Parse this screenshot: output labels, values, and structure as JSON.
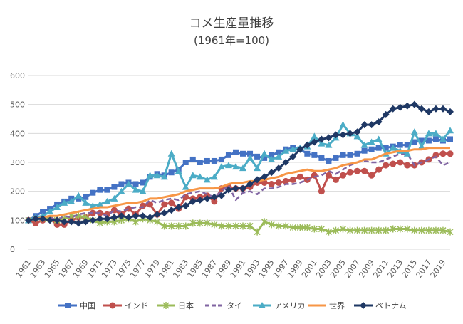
{
  "chart_data": {
    "type": "line",
    "title": "コメ生産量推移",
    "subtitle": "(1961年=100)",
    "xlabel": "",
    "ylabel": "",
    "ylim": [
      0,
      600
    ],
    "yticks": [
      0,
      100,
      200,
      300,
      400,
      500,
      600
    ],
    "xrange": [
      1961,
      2020
    ],
    "xticks": [
      1961,
      1963,
      1965,
      1967,
      1969,
      1971,
      1973,
      1975,
      1977,
      1979,
      1981,
      1983,
      1985,
      1987,
      1989,
      1991,
      1993,
      1995,
      1997,
      1999,
      2001,
      2003,
      2005,
      2007,
      2009,
      2011,
      2013,
      2015,
      2017,
      2019
    ],
    "grid": true,
    "legend_position": "bottom",
    "x": [
      1961,
      1962,
      1963,
      1964,
      1965,
      1966,
      1967,
      1968,
      1969,
      1970,
      1971,
      1972,
      1973,
      1974,
      1975,
      1976,
      1977,
      1978,
      1979,
      1980,
      1981,
      1982,
      1983,
      1984,
      1985,
      1986,
      1987,
      1988,
      1989,
      1990,
      1991,
      1992,
      1993,
      1994,
      1995,
      1996,
      1997,
      1998,
      1999,
      2000,
      2001,
      2002,
      2003,
      2004,
      2005,
      2006,
      2007,
      2008,
      2009,
      2010,
      2011,
      2012,
      2013,
      2014,
      2015,
      2016,
      2017,
      2018,
      2019,
      2020
    ],
    "series": [
      {
        "name": "中国",
        "color": "#4472C4",
        "style": "solid",
        "marker": "square",
        "values": [
          100,
          115,
          130,
          140,
          155,
          165,
          175,
          175,
          180,
          195,
          205,
          205,
          215,
          225,
          230,
          225,
          230,
          250,
          260,
          255,
          265,
          275,
          300,
          310,
          300,
          305,
          305,
          310,
          325,
          335,
          330,
          330,
          320,
          315,
          325,
          335,
          345,
          350,
          345,
          330,
          325,
          315,
          305,
          315,
          325,
          325,
          330,
          340,
          345,
          350,
          350,
          355,
          360,
          360,
          370,
          375,
          375,
          380,
          375,
          380
        ]
      },
      {
        "name": "インド",
        "color": "#C0504D",
        "style": "solid",
        "marker": "circle",
        "values": [
          100,
          90,
          100,
          105,
          85,
          85,
          100,
          110,
          110,
          125,
          125,
          120,
          135,
          120,
          140,
          120,
          150,
          155,
          120,
          155,
          160,
          140,
          180,
          175,
          180,
          185,
          165,
          210,
          215,
          210,
          210,
          215,
          230,
          230,
          225,
          230,
          235,
          240,
          250,
          240,
          255,
          200,
          255,
          240,
          255,
          265,
          270,
          270,
          255,
          275,
          290,
          295,
          300,
          290,
          290,
          300,
          310,
          325,
          330,
          330
        ]
      },
      {
        "name": "日本",
        "color": "#9BBB59",
        "style": "solid",
        "marker": "star",
        "values": [
          100,
          105,
          105,
          105,
          100,
          105,
          115,
          115,
          110,
          100,
          90,
          95,
          95,
          100,
          105,
          95,
          105,
          100,
          95,
          80,
          80,
          80,
          80,
          90,
          90,
          90,
          85,
          80,
          80,
          80,
          80,
          80,
          60,
          95,
          85,
          80,
          80,
          75,
          75,
          75,
          70,
          70,
          60,
          65,
          70,
          65,
          65,
          65,
          65,
          65,
          65,
          70,
          70,
          70,
          65,
          65,
          65,
          65,
          65,
          60
        ]
      },
      {
        "name": "タイ",
        "color": "#8064A2",
        "style": "dashed",
        "marker": "none",
        "values": [
          100,
          110,
          115,
          110,
          100,
          115,
          110,
          120,
          125,
          125,
          125,
          115,
          135,
          130,
          140,
          145,
          145,
          170,
          160,
          170,
          175,
          170,
          190,
          195,
          200,
          190,
          180,
          200,
          220,
          170,
          195,
          200,
          190,
          210,
          210,
          215,
          225,
          225,
          230,
          240,
          250,
          255,
          270,
          260,
          275,
          290,
          300,
          305,
          300,
          300,
          310,
          320,
          330,
          330,
          290,
          300,
          310,
          320,
          290,
          300
        ]
      },
      {
        "name": "アメリカ",
        "color": "#4BACC6",
        "style": "solid",
        "marker": "triangle",
        "values": [
          100,
          110,
          115,
          130,
          145,
          160,
          165,
          185,
          160,
          150,
          155,
          165,
          175,
          200,
          225,
          205,
          200,
          255,
          255,
          250,
          330,
          270,
          215,
          255,
          250,
          240,
          250,
          285,
          290,
          285,
          280,
          315,
          280,
          330,
          310,
          320,
          340,
          345,
          350,
          355,
          390,
          365,
          360,
          385,
          430,
          400,
          390,
          360,
          370,
          380,
          330,
          350,
          340,
          330,
          405,
          355,
          400,
          400,
          380,
          410
        ]
      },
      {
        "name": "世界",
        "color": "#F79646",
        "style": "solid",
        "marker": "none",
        "values": [
          100,
          105,
          110,
          115,
          115,
          120,
          125,
          130,
          135,
          140,
          145,
          145,
          150,
          155,
          160,
          160,
          165,
          175,
          175,
          180,
          185,
          190,
          200,
          205,
          210,
          210,
          210,
          215,
          225,
          230,
          230,
          235,
          235,
          240,
          245,
          250,
          260,
          265,
          270,
          275,
          270,
          270,
          275,
          280,
          290,
          295,
          300,
          310,
          310,
          320,
          330,
          335,
          340,
          340,
          345,
          345,
          350,
          350,
          350,
          350
        ]
      },
      {
        "name": "ベトナム",
        "color": "#1F3864",
        "style": "solid",
        "marker": "diamond",
        "values": [
          100,
          105,
          105,
          100,
          100,
          95,
          95,
          90,
          95,
          100,
          105,
          105,
          110,
          115,
          110,
          115,
          115,
          110,
          120,
          125,
          135,
          145,
          150,
          165,
          170,
          175,
          180,
          185,
          205,
          210,
          210,
          225,
          240,
          250,
          265,
          280,
          300,
          320,
          345,
          360,
          370,
          380,
          385,
          395,
          395,
          400,
          405,
          430,
          430,
          440,
          465,
          485,
          490,
          495,
          500,
          485,
          475,
          485,
          485,
          475
        ]
      }
    ]
  }
}
